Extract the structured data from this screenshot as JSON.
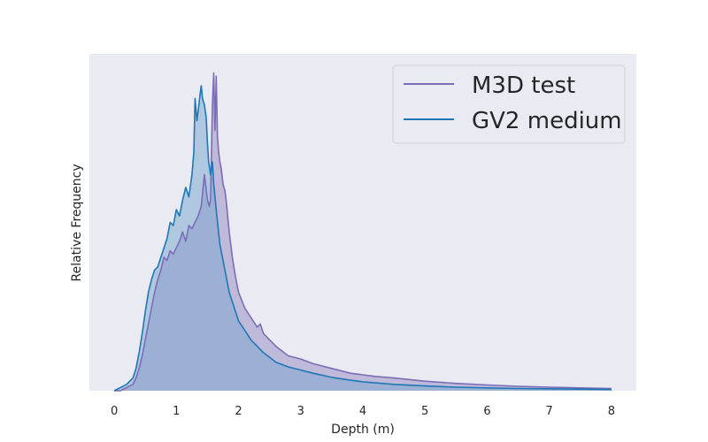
{
  "chart_data": {
    "type": "area",
    "title": "",
    "xlabel": "Depth (m)",
    "ylabel": "Relative Frequency",
    "xlim": [
      -0.4,
      8.4
    ],
    "ylim": [
      0,
      1.06
    ],
    "xticks": [
      0,
      1,
      2,
      3,
      4,
      5,
      6,
      7,
      8
    ],
    "grid": false,
    "legend_position": "top-right",
    "series": [
      {
        "name": "M3D test",
        "color": "#7b6db5",
        "fill": "#9b8fc7",
        "x": [
          0,
          0.1,
          0.2,
          0.3,
          0.35,
          0.4,
          0.45,
          0.5,
          0.55,
          0.6,
          0.65,
          0.7,
          0.75,
          0.8,
          0.85,
          0.9,
          0.95,
          1.0,
          1.05,
          1.1,
          1.15,
          1.2,
          1.25,
          1.3,
          1.35,
          1.4,
          1.45,
          1.47,
          1.5,
          1.53,
          1.55,
          1.58,
          1.6,
          1.62,
          1.64,
          1.66,
          1.68,
          1.7,
          1.72,
          1.75,
          1.78,
          1.8,
          1.85,
          1.9,
          1.95,
          2.0,
          2.1,
          2.2,
          2.3,
          2.35,
          2.4,
          2.5,
          2.6,
          2.7,
          2.8,
          3.0,
          3.2,
          3.5,
          3.8,
          4.0,
          4.2,
          4.5,
          5.0,
          5.5,
          6.0,
          6.5,
          7.0,
          7.5,
          8.0
        ],
        "y": [
          0.0,
          0.0,
          0.01,
          0.02,
          0.04,
          0.07,
          0.11,
          0.16,
          0.21,
          0.26,
          0.31,
          0.35,
          0.38,
          0.42,
          0.41,
          0.44,
          0.43,
          0.45,
          0.47,
          0.5,
          0.47,
          0.52,
          0.51,
          0.53,
          0.55,
          0.58,
          0.68,
          0.65,
          0.6,
          0.58,
          0.6,
          0.9,
          1.0,
          0.82,
          0.99,
          0.8,
          0.75,
          0.72,
          0.7,
          0.65,
          0.63,
          0.6,
          0.5,
          0.42,
          0.36,
          0.31,
          0.26,
          0.23,
          0.2,
          0.21,
          0.18,
          0.16,
          0.14,
          0.125,
          0.11,
          0.1,
          0.085,
          0.07,
          0.055,
          0.05,
          0.045,
          0.04,
          0.03,
          0.023,
          0.018,
          0.014,
          0.011,
          0.009,
          0.007
        ]
      },
      {
        "name": "GV2 medium",
        "color": "#1f77b4",
        "fill": "#7fa9d2",
        "x": [
          0,
          0.1,
          0.2,
          0.3,
          0.35,
          0.4,
          0.45,
          0.5,
          0.55,
          0.6,
          0.65,
          0.7,
          0.75,
          0.8,
          0.85,
          0.9,
          0.95,
          1.0,
          1.05,
          1.1,
          1.15,
          1.2,
          1.25,
          1.28,
          1.3,
          1.33,
          1.35,
          1.38,
          1.4,
          1.42,
          1.45,
          1.48,
          1.5,
          1.52,
          1.55,
          1.58,
          1.6,
          1.65,
          1.7,
          1.75,
          1.8,
          1.85,
          1.9,
          1.95,
          2.0,
          2.1,
          2.2,
          2.3,
          2.4,
          2.5,
          2.6,
          2.8,
          3.0,
          3.2,
          3.5,
          3.8,
          4.0,
          4.5,
          5.0,
          5.5,
          6.0,
          6.5,
          7.0,
          7.5,
          8.0
        ],
        "y": [
          0.0,
          0.01,
          0.02,
          0.04,
          0.07,
          0.12,
          0.18,
          0.25,
          0.31,
          0.35,
          0.38,
          0.39,
          0.42,
          0.45,
          0.48,
          0.53,
          0.52,
          0.57,
          0.55,
          0.6,
          0.64,
          0.61,
          0.68,
          0.75,
          0.92,
          0.85,
          0.88,
          0.93,
          0.96,
          0.92,
          0.9,
          0.86,
          0.78,
          0.72,
          0.68,
          0.72,
          0.65,
          0.55,
          0.46,
          0.41,
          0.36,
          0.31,
          0.28,
          0.25,
          0.22,
          0.19,
          0.16,
          0.14,
          0.12,
          0.105,
          0.09,
          0.075,
          0.065,
          0.055,
          0.042,
          0.033,
          0.028,
          0.02,
          0.015,
          0.011,
          0.009,
          0.007,
          0.006,
          0.005,
          0.004
        ]
      }
    ]
  }
}
